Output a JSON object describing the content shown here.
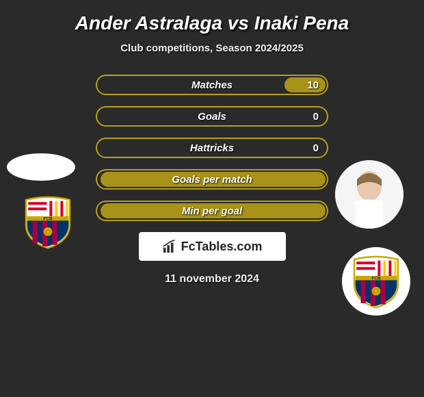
{
  "title": "Ander Astralaga vs Inaki Pena",
  "subtitle": "Club competitions, Season 2024/2025",
  "date": "11 november 2024",
  "brand": "FcTables.com",
  "colors": {
    "border": "#b5a01a",
    "fill": "#a89318",
    "background": "#2a2a2a"
  },
  "stats": [
    {
      "label": "Matches",
      "right_value": "10",
      "right_fill_pct": 18
    },
    {
      "label": "Goals",
      "right_value": "0",
      "right_fill_pct": 0
    },
    {
      "label": "Hattricks",
      "right_value": "0",
      "right_fill_pct": 0
    },
    {
      "label": "Goals per match",
      "right_value": "",
      "right_fill_pct": 98
    },
    {
      "label": "Min per goal",
      "right_value": "",
      "right_fill_pct": 98
    }
  ],
  "player_left": {
    "name": "Ander Astralaga",
    "club": "Barcelona"
  },
  "player_right": {
    "name": "Inaki Pena",
    "club": "Barcelona"
  }
}
